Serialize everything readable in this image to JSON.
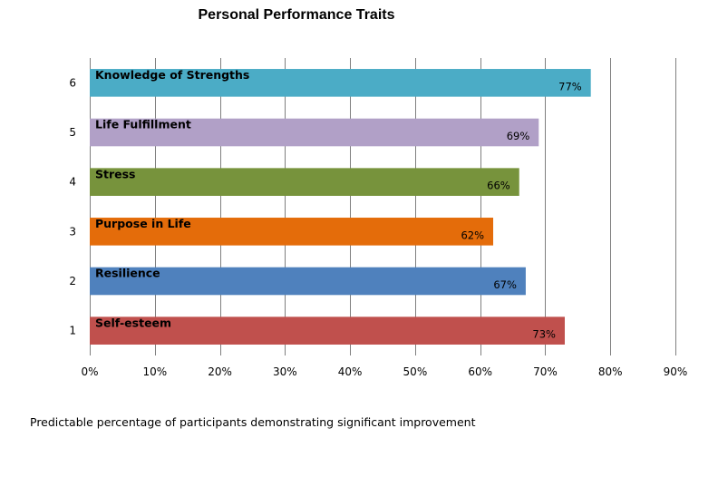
{
  "chart_data": {
    "type": "bar",
    "orientation": "horizontal",
    "title": "Personal Performance Traits",
    "categories": [
      "1",
      "2",
      "3",
      "4",
      "5",
      "6"
    ],
    "bar_labels": [
      "Self-esteem",
      "Resilience",
      "Purpose in Life",
      "Stress",
      "Life Fulfillment",
      "Knowledge  of Strengths"
    ],
    "values": [
      73,
      67,
      62,
      66,
      69,
      77
    ],
    "value_labels": [
      "73%",
      "67%",
      "62%",
      "66%",
      "69%",
      "77%"
    ],
    "colors": [
      "#c0504d",
      "#4f81bd",
      "#e46c0a",
      "#77933c",
      "#b1a0c7",
      "#4bacc6"
    ],
    "xlim": [
      0,
      90
    ],
    "xticks": [
      0,
      10,
      20,
      30,
      40,
      50,
      60,
      70,
      80,
      90
    ],
    "xtick_labels": [
      "0%",
      "10%",
      "20%",
      "30%",
      "40%",
      "50%",
      "60%",
      "70%",
      "80%",
      "90%"
    ],
    "grid": "vertical",
    "legend": "none"
  },
  "footnote": "Predictable percentage of  participants demonstrating significant improvement"
}
